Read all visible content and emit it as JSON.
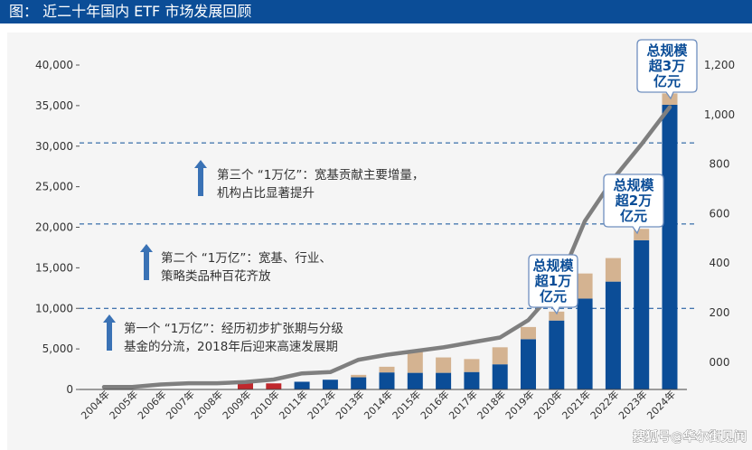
{
  "header": {
    "title": "图：  近二十年国内 ETF 市场发展回顾"
  },
  "chart_data": {
    "type": "bar",
    "categories": [
      "2004年",
      "2005年",
      "2006年",
      "2007年",
      "2008年",
      "2009年",
      "2010年",
      "2011年",
      "2012年",
      "2013年",
      "2014年",
      "2015年",
      "2016年",
      "2017年",
      "2018年",
      "2019年",
      "2020年",
      "2021年",
      "2022年",
      "2023年",
      "2024年"
    ],
    "series": [
      {
        "values": [
          0,
          0,
          0,
          0,
          0,
          0,
          0,
          950,
          1200,
          1500,
          2100,
          2050,
          2050,
          2150,
          3100,
          6200,
          8500,
          11200,
          13300,
          18400,
          35100
        ]
      },
      {
        "values": [
          0,
          0,
          0,
          0,
          0,
          0,
          0,
          0,
          0,
          300,
          700,
          2750,
          1900,
          1600,
          2100,
          1500,
          1100,
          3100,
          2900,
          1400,
          1400
        ]
      },
      {
        "values": [
          0,
          0,
          0,
          0,
          0,
          950,
          750,
          0,
          0,
          0,
          0,
          0,
          0,
          0,
          0,
          0,
          0,
          0,
          0,
          0,
          0
        ]
      },
      {
        "values": [
          -100,
          -100,
          -90,
          -85,
          -85,
          -80,
          -70,
          -45,
          -40,
          10,
          30,
          45,
          60,
          80,
          100,
          170,
          300,
          570,
          740,
          880,
          1030
        ]
      }
    ],
    "y_left": {
      "min": 0,
      "max": 40000,
      "ticks": [
        "0",
        "5,000",
        "10,000",
        "15,000",
        "20,000",
        "25,000",
        "30,000",
        "35,000",
        "40,000"
      ]
    },
    "y_right": {
      "min": -110,
      "max": 1200,
      "ticks": [
        "000",
        "200",
        "400",
        "600",
        "800",
        "1,000",
        "1,200"
      ]
    },
    "reference_lines": [
      10000,
      20400,
      30400
    ],
    "colors": {
      "primary": "#0b4d97",
      "secondary": "#d4b391",
      "early": "#c0282d",
      "line": "#7f7f7f"
    },
    "annotations": [
      {
        "arrow": true,
        "lines": [
          "第一个 “1万亿”：经历初步扩张期与分级",
          "基金的分流，2018年后迎来高速发展期"
        ]
      },
      {
        "arrow": true,
        "lines": [
          "第二个 “1万亿”：宽基、行业、",
          "策略类品种百花齐放"
        ]
      },
      {
        "arrow": true,
        "lines": [
          "第三个 “1万亿”：宽基贡献主要增量，",
          "机构占比显著提升"
        ]
      }
    ],
    "callouts": [
      {
        "lines": [
          "总规模",
          "超1万",
          "亿元"
        ]
      },
      {
        "lines": [
          "总规模",
          "超2万",
          "亿元"
        ]
      },
      {
        "lines": [
          "总规模",
          "超3万",
          "亿元"
        ]
      }
    ]
  },
  "watermark": "搜狐号@华尔街见闻"
}
